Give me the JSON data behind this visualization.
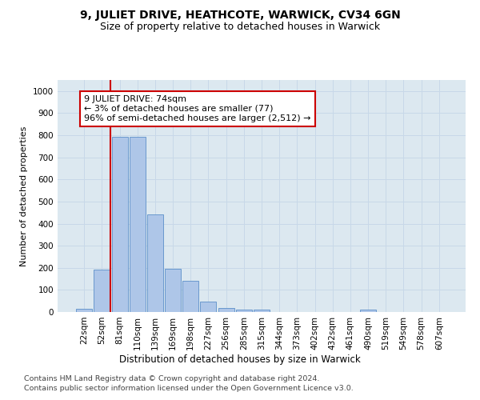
{
  "title": "9, JULIET DRIVE, HEATHCOTE, WARWICK, CV34 6GN",
  "subtitle": "Size of property relative to detached houses in Warwick",
  "xlabel": "Distribution of detached houses by size in Warwick",
  "ylabel": "Number of detached properties",
  "categories": [
    "22sqm",
    "52sqm",
    "81sqm",
    "110sqm",
    "139sqm",
    "169sqm",
    "198sqm",
    "227sqm",
    "256sqm",
    "285sqm",
    "315sqm",
    "344sqm",
    "373sqm",
    "402sqm",
    "432sqm",
    "461sqm",
    "490sqm",
    "519sqm",
    "549sqm",
    "578sqm",
    "607sqm"
  ],
  "values": [
    15,
    193,
    793,
    793,
    440,
    197,
    140,
    48,
    18,
    10,
    10,
    0,
    0,
    0,
    0,
    0,
    10,
    0,
    0,
    0,
    0
  ],
  "bar_color": "#aec6e8",
  "bar_edge_color": "#5b8fc9",
  "vline_color": "#cc0000",
  "vline_x_index": 1.5,
  "annotation_text": "9 JULIET DRIVE: 74sqm\n← 3% of detached houses are smaller (77)\n96% of semi-detached houses are larger (2,512) →",
  "annotation_box_facecolor": "#ffffff",
  "annotation_box_edgecolor": "#cc0000",
  "ylim": [
    0,
    1050
  ],
  "yticks": [
    0,
    100,
    200,
    300,
    400,
    500,
    600,
    700,
    800,
    900,
    1000
  ],
  "grid_color": "#c8d8e8",
  "background_color": "#dce8f0",
  "footer_line1": "Contains HM Land Registry data © Crown copyright and database right 2024.",
  "footer_line2": "Contains public sector information licensed under the Open Government Licence v3.0.",
  "title_fontsize": 10,
  "subtitle_fontsize": 9,
  "xlabel_fontsize": 8.5,
  "ylabel_fontsize": 8,
  "tick_fontsize": 7.5,
  "annotation_fontsize": 8,
  "footer_fontsize": 6.8
}
